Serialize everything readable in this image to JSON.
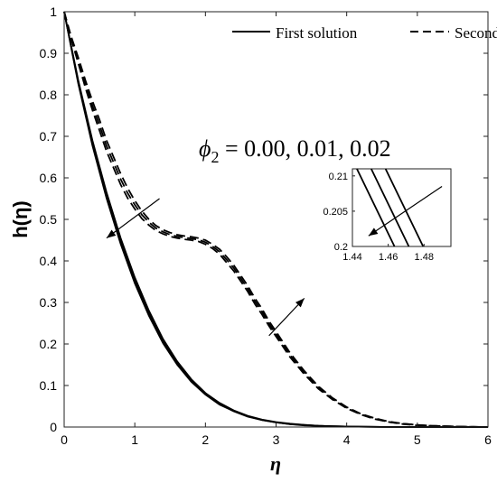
{
  "chart_data": {
    "type": "line",
    "xlabel": "η",
    "ylabel": "h(η)",
    "xlim": [
      0,
      6
    ],
    "ylim": [
      0,
      1
    ],
    "x_ticks": [
      0,
      1,
      2,
      3,
      4,
      5,
      6
    ],
    "y_ticks": [
      0,
      0.1,
      0.2,
      0.3,
      0.4,
      0.5,
      0.6,
      0.7,
      0.8,
      0.9,
      1
    ],
    "x_tick_labels": [
      "0",
      "1",
      "2",
      "3",
      "4",
      "5",
      "6"
    ],
    "y_tick_labels": [
      "0",
      "0.1",
      "0.2",
      "0.3",
      "0.4",
      "0.5",
      "0.6",
      "0.7",
      "0.8",
      "0.9",
      "1"
    ],
    "legend": {
      "placement": "top",
      "entries": [
        {
          "label": "First solution",
          "style": "solid"
        },
        {
          "label": "Second solution",
          "style": "dashed"
        }
      ]
    },
    "annotation": {
      "symbol": "ϕ",
      "subscript": "2",
      "text": " = 0.00, 0.01, 0.02"
    },
    "line_color": "#000000",
    "series": [
      {
        "style": "solid",
        "x": [
          0,
          0.2,
          0.4,
          0.6,
          0.8,
          1.0,
          1.2,
          1.4,
          1.6,
          1.8,
          2.0,
          2.2,
          2.4,
          2.6,
          2.8,
          3.0,
          3.2,
          3.4,
          3.6,
          3.8,
          4.0,
          4.5,
          5.0,
          5.5,
          6.0
        ],
        "values": [
          1.0,
          0.835,
          0.69,
          0.565,
          0.455,
          0.36,
          0.28,
          0.212,
          0.158,
          0.115,
          0.082,
          0.058,
          0.04,
          0.027,
          0.018,
          0.012,
          0.008,
          0.005,
          0.003,
          0.002,
          0.001,
          0.0003,
          0.0001,
          0.0,
          0.0
        ]
      },
      {
        "style": "solid",
        "x": [
          0,
          0.2,
          0.4,
          0.6,
          0.8,
          1.0,
          1.2,
          1.4,
          1.6,
          1.8,
          2.0,
          2.2,
          2.4,
          2.6,
          2.8,
          3.0,
          3.2,
          3.4,
          3.6,
          3.8,
          4.0,
          4.5,
          5.0,
          5.5,
          6.0
        ],
        "values": [
          1.0,
          0.831,
          0.684,
          0.558,
          0.448,
          0.353,
          0.274,
          0.207,
          0.154,
          0.112,
          0.08,
          0.056,
          0.039,
          0.026,
          0.017,
          0.011,
          0.007,
          0.005,
          0.003,
          0.002,
          0.001,
          0.0003,
          0.0001,
          0.0,
          0.0
        ]
      },
      {
        "style": "solid",
        "x": [
          0,
          0.2,
          0.4,
          0.6,
          0.8,
          1.0,
          1.2,
          1.4,
          1.6,
          1.8,
          2.0,
          2.2,
          2.4,
          2.6,
          2.8,
          3.0,
          3.2,
          3.4,
          3.6,
          3.8,
          4.0,
          4.5,
          5.0,
          5.5,
          6.0
        ],
        "values": [
          1.0,
          0.827,
          0.678,
          0.551,
          0.441,
          0.346,
          0.268,
          0.202,
          0.15,
          0.109,
          0.078,
          0.054,
          0.038,
          0.025,
          0.017,
          0.011,
          0.007,
          0.004,
          0.003,
          0.002,
          0.001,
          0.0003,
          0.0001,
          0.0,
          0.0
        ]
      },
      {
        "style": "dashed",
        "x": [
          0,
          0.1,
          0.2,
          0.3,
          0.4,
          0.5,
          0.6,
          0.7,
          0.8,
          0.9,
          1.0,
          1.1,
          1.2,
          1.3,
          1.4,
          1.5,
          1.6,
          1.7,
          1.8,
          1.9,
          2.0,
          2.1,
          2.2,
          2.3,
          2.4,
          2.5,
          2.6,
          2.7,
          2.8,
          2.9,
          3.0,
          3.2,
          3.4,
          3.6,
          3.8,
          4.0,
          4.2,
          4.4,
          4.6,
          4.8,
          5.0,
          5.2,
          5.4,
          5.6,
          5.8,
          6.0
        ],
        "values": [
          1.0,
          0.94,
          0.89,
          0.835,
          0.785,
          0.74,
          0.69,
          0.65,
          0.61,
          0.575,
          0.545,
          0.52,
          0.5,
          0.485,
          0.475,
          0.468,
          0.463,
          0.46,
          0.458,
          0.455,
          0.45,
          0.44,
          0.428,
          0.41,
          0.39,
          0.365,
          0.34,
          0.31,
          0.285,
          0.255,
          0.23,
          0.178,
          0.135,
          0.098,
          0.07,
          0.048,
          0.032,
          0.021,
          0.013,
          0.008,
          0.005,
          0.003,
          0.002,
          0.001,
          0.0005,
          0.0
        ]
      },
      {
        "style": "dashed",
        "x": [
          0,
          0.1,
          0.2,
          0.3,
          0.4,
          0.5,
          0.6,
          0.7,
          0.8,
          0.9,
          1.0,
          1.1,
          1.2,
          1.3,
          1.4,
          1.5,
          1.6,
          1.7,
          1.8,
          1.9,
          2.0,
          2.1,
          2.2,
          2.3,
          2.4,
          2.5,
          2.6,
          2.7,
          2.8,
          2.9,
          3.0,
          3.2,
          3.4,
          3.6,
          3.8,
          4.0,
          4.2,
          4.4,
          4.6,
          4.8,
          5.0,
          5.2,
          5.4,
          5.6,
          5.8,
          6.0
        ],
        "values": [
          1.0,
          0.937,
          0.883,
          0.826,
          0.774,
          0.727,
          0.677,
          0.637,
          0.597,
          0.563,
          0.535,
          0.511,
          0.493,
          0.479,
          0.47,
          0.463,
          0.459,
          0.456,
          0.454,
          0.451,
          0.445,
          0.435,
          0.422,
          0.403,
          0.383,
          0.358,
          0.333,
          0.303,
          0.278,
          0.249,
          0.224,
          0.173,
          0.131,
          0.095,
          0.068,
          0.046,
          0.031,
          0.02,
          0.012,
          0.008,
          0.005,
          0.003,
          0.002,
          0.001,
          0.0005,
          0.0
        ]
      },
      {
        "style": "dashed",
        "x": [
          0,
          0.1,
          0.2,
          0.3,
          0.4,
          0.5,
          0.6,
          0.7,
          0.8,
          0.9,
          1.0,
          1.1,
          1.2,
          1.3,
          1.4,
          1.5,
          1.6,
          1.7,
          1.8,
          1.9,
          2.0,
          2.1,
          2.2,
          2.3,
          2.4,
          2.5,
          2.6,
          2.7,
          2.8,
          2.9,
          3.0,
          3.2,
          3.4,
          3.6,
          3.8,
          4.0,
          4.2,
          4.4,
          4.6,
          4.8,
          5.0,
          5.2,
          5.4,
          5.6,
          5.8,
          6.0
        ],
        "values": [
          1.0,
          0.934,
          0.876,
          0.817,
          0.763,
          0.714,
          0.664,
          0.624,
          0.584,
          0.551,
          0.525,
          0.502,
          0.486,
          0.473,
          0.465,
          0.459,
          0.455,
          0.452,
          0.45,
          0.447,
          0.44,
          0.43,
          0.416,
          0.396,
          0.376,
          0.351,
          0.326,
          0.296,
          0.271,
          0.243,
          0.218,
          0.168,
          0.127,
          0.092,
          0.066,
          0.045,
          0.03,
          0.019,
          0.012,
          0.007,
          0.004,
          0.003,
          0.002,
          0.001,
          0.0005,
          0.0
        ]
      }
    ],
    "inset": {
      "xlim": [
        1.44,
        1.495
      ],
      "ylim": [
        0.2,
        0.211
      ],
      "x_ticks": [
        1.44,
        1.46,
        1.48
      ],
      "y_ticks": [
        0.2,
        0.205,
        0.21
      ],
      "x_tick_labels": [
        "1.44",
        "1.46",
        "1.48"
      ],
      "y_tick_labels": [
        "0.2",
        "0.205",
        "0.21"
      ],
      "series": [
        {
          "x": [
            1.4425,
            1.4635
          ],
          "values": [
            0.211,
            0.2
          ]
        },
        {
          "x": [
            1.4505,
            1.4715
          ],
          "values": [
            0.211,
            0.2
          ]
        },
        {
          "x": [
            1.4585,
            1.4795
          ],
          "values": [
            0.211,
            0.2
          ]
        }
      ]
    },
    "arrows": [
      {
        "from": [
          1.35,
          0.55
        ],
        "to": [
          0.6,
          0.455
        ]
      },
      {
        "from": [
          2.9,
          0.22
        ],
        "to": [
          3.4,
          0.31
        ]
      },
      {
        "from": [
          1.49,
          0.2085
        ],
        "to": [
          1.449,
          0.2015
        ],
        "frame": "inset"
      }
    ]
  }
}
